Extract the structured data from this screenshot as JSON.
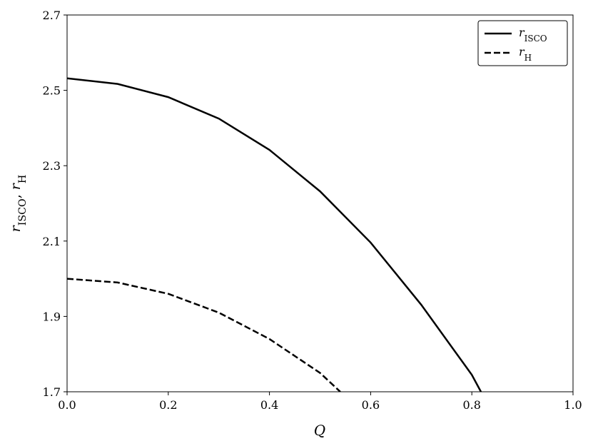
{
  "chart_data": {
    "type": "line",
    "xlabel": "Q",
    "ylabel": "rISCO, rH",
    "xlim": [
      0,
      1
    ],
    "ylim": [
      1.7,
      2.7
    ],
    "xticks": [
      {
        "value": 0,
        "label": "0.0"
      },
      0.2,
      0.4,
      0.6,
      0.8,
      {
        "value": 1,
        "label": "1.0"
      }
    ],
    "yticks": [
      1.7,
      1.9,
      2.1,
      2.3,
      2.5,
      2.7
    ],
    "legend": "upper right",
    "series": [
      {
        "name": "rISCO",
        "color": "#000000",
        "dash": "solid",
        "x": [
          0,
          0.1,
          0.2,
          0.3,
          0.4,
          0.5,
          0.6,
          0.7,
          0.8,
          0.818
        ],
        "values": [
          2.532,
          2.517,
          2.482,
          2.425,
          2.342,
          2.232,
          2.096,
          1.931,
          1.745,
          1.7
        ]
      },
      {
        "name": "rH",
        "color": "#000000",
        "dash": "dashed",
        "x": [
          0,
          0.1,
          0.2,
          0.3,
          0.4,
          0.5,
          0.54
        ],
        "values": [
          2.0,
          1.99,
          1.96,
          1.91,
          1.84,
          1.75,
          1.7
        ]
      }
    ]
  }
}
